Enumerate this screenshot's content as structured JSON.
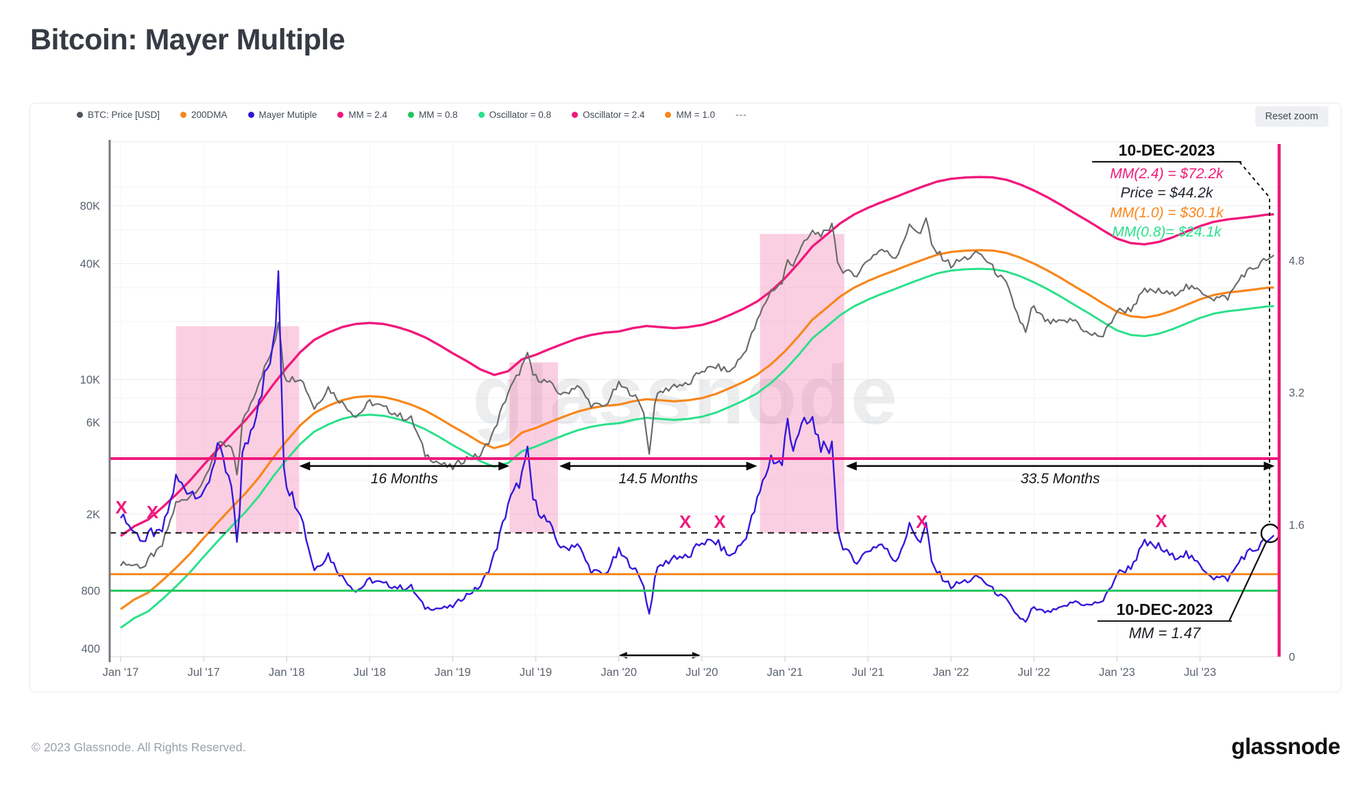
{
  "page": {
    "title": "Bitcoin: Mayer Multiple",
    "watermark": "glassnode",
    "footer": "© 2023 Glassnode. All Rights Reserved.",
    "brand": "glassnode"
  },
  "toolbar": {
    "reset_zoom": "Reset zoom"
  },
  "legend": [
    {
      "label": "BTC: Price [USD]",
      "color": "#4d545e"
    },
    {
      "label": "200DMA",
      "color": "#F8861B"
    },
    {
      "label": "Mayer Mutiple",
      "color": "#2E16D8"
    },
    {
      "label": "MM = 2.4",
      "color": "#F0197C"
    },
    {
      "label": "MM = 0.8",
      "color": "#1FC65C"
    },
    {
      "label": "Oscillator = 0.8",
      "color": "#2BE08A"
    },
    {
      "label": "Oscillator = 2.4",
      "color": "#F0197C"
    },
    {
      "label": "MM = 1.0",
      "color": "#F8861B"
    },
    {
      "label": "---",
      "color": "#9aa0a8",
      "dash": true
    }
  ],
  "annotations": {
    "top": {
      "date": "10-DEC-2023",
      "lines": [
        {
          "text": "MM(2.4) = $72.2k",
          "color": "#F0197C"
        },
        {
          "text": "Price = $44.2k",
          "color": "#1f242b"
        },
        {
          "text": "MM(1.0) = $30.1k",
          "color": "#F8861B"
        },
        {
          "text": "MM(0.8)= $24.1k",
          "color": "#2BE08A"
        }
      ]
    },
    "bottom": {
      "date": "10-DEC-2023",
      "value": "MM = 1.47"
    }
  },
  "chart_data": {
    "type": "line",
    "title": "Bitcoin: Mayer Multiple",
    "x_unit": "month",
    "x_start": "Jan 2017",
    "x_tick_labels": [
      "Jan '17",
      "Jul '17",
      "Jan '18",
      "Jul '18",
      "Jan '19",
      "Jul '19",
      "Jan '20",
      "Jul '20",
      "Jan '21",
      "Jul '21",
      "Jan '22",
      "Jul '22",
      "Jan '23",
      "Jul '23"
    ],
    "y_left": {
      "scale": "log",
      "unit": "USD",
      "ticks": [
        {
          "label": "80K",
          "value": 80000
        },
        {
          "label": "40K",
          "value": 40000
        },
        {
          "label": "10K",
          "value": 10000
        },
        {
          "label": "6K",
          "value": 6000
        },
        {
          "label": "2K",
          "value": 2000
        },
        {
          "label": "800",
          "value": 800
        },
        {
          "label": "400",
          "value": 400
        }
      ]
    },
    "y_right": {
      "scale": "linear",
      "unit": "Mayer Multiple",
      "ticks": [
        {
          "label": "4.8",
          "value": 4.8
        },
        {
          "label": "3.2",
          "value": 3.2
        },
        {
          "label": "1.6",
          "value": 1.6
        },
        {
          "label": "0",
          "value": 0
        }
      ]
    },
    "series": [
      {
        "name": "BTC: Price [USD]",
        "color": "#6b6b6b",
        "axis": "left",
        "monthly": [
          1050,
          1100,
          1080,
          1350,
          2300,
          2480,
          2870,
          4700,
          4350,
          6450,
          9900,
          14100,
          10200,
          10300,
          7000,
          9240,
          7500,
          6400,
          7750,
          7000,
          6600,
          6300,
          4020,
          3740,
          3460,
          3860,
          4100,
          5350,
          8560,
          11800,
          10100,
          9600,
          8300,
          9200,
          7550,
          7200,
          9350,
          8600,
          6440,
          8630,
          9450,
          9140,
          11350,
          11650,
          10780,
          13800,
          19700,
          29000,
          33100,
          45200,
          58800,
          57700,
          37300,
          35000,
          41500,
          47100,
          43800,
          61300,
          57000,
          46200,
          38500,
          43200,
          45500,
          37700,
          31800,
          19900,
          23300,
          20050,
          19400,
          20500,
          17150,
          16550,
          23100,
          23150,
          28500,
          29250,
          27200,
          30480,
          29230,
          25930,
          26970,
          34670,
          37700,
          44200
        ]
      },
      {
        "name": "200DMA",
        "color": "#F8861B",
        "axis": "left",
        "monthly": [
          640,
          720,
          780,
          900,
          1050,
          1240,
          1500,
          1800,
          2150,
          2550,
          3100,
          3900,
          4800,
          5800,
          6700,
          7300,
          7800,
          8100,
          8200,
          8100,
          7800,
          7400,
          6900,
          6300,
          5700,
          5200,
          4700,
          4400,
          4600,
          5300,
          5600,
          6000,
          6400,
          6800,
          7100,
          7300,
          7400,
          7700,
          7900,
          7800,
          7700,
          7800,
          8000,
          8400,
          9000,
          9700,
          10600,
          12000,
          14000,
          16800,
          20500,
          23500,
          27000,
          30000,
          32500,
          34800,
          37000,
          39500,
          42000,
          44500,
          46000,
          46700,
          47000,
          46800,
          45500,
          43000,
          40000,
          36800,
          33500,
          30300,
          27500,
          24800,
          22500,
          21300,
          21000,
          21600,
          22800,
          24400,
          26100,
          27500,
          28300,
          28800,
          29400,
          30070
        ]
      },
      {
        "name": "Mayer Mutiple",
        "color": "#2E16D8",
        "axis": "right",
        "derived": "price / 200dma"
      },
      {
        "name": "MM = 2.4",
        "color": "#F0197C",
        "axis": "left",
        "derived": "2.4 x 200dma"
      },
      {
        "name": "MM = 0.8",
        "color": "#2BE08A",
        "axis": "left",
        "derived": "0.8 x 200dma"
      }
    ],
    "price_spikes": [
      {
        "m": 0.15,
        "price": 1130
      },
      {
        "m": 2.3,
        "price": 1250
      },
      {
        "m": 8.5,
        "price": 3200
      },
      {
        "m": 11.45,
        "price": 19800
      },
      {
        "m": 29.5,
        "price": 13800
      },
      {
        "m": 38.15,
        "price": 4100
      },
      {
        "m": 48.25,
        "price": 41900
      },
      {
        "m": 51.4,
        "price": 64800
      },
      {
        "m": 58.25,
        "price": 69000
      },
      {
        "m": 65.5,
        "price": 17600
      }
    ],
    "hlines": [
      {
        "label": "Oscillator = 2.4",
        "value": 2.4,
        "color": "#F0197C",
        "width": 4
      },
      {
        "label": "MM = 1.0",
        "value": 1.0,
        "color": "#F8861B",
        "width": 3
      },
      {
        "label": "Oscillator = 0.8",
        "value": 0.8,
        "color": "#1FC65C",
        "width": 3
      }
    ],
    "dashed_threshold_mm": 1.5,
    "regions": [
      {
        "m0": 4.0,
        "m1": 12.9,
        "top_price": 18900,
        "bottom_mm": 1.5
      },
      {
        "m0": 28.1,
        "m1": 31.6,
        "top_price": 12300,
        "bottom_mm": 1.5
      },
      {
        "m0": 46.2,
        "m1": 52.3,
        "top_price": 57100,
        "bottom_mm": 1.5
      }
    ],
    "region_color": "rgba(243,96,160,0.30)",
    "period_arrows": [
      {
        "m0": 12.9,
        "m1": 28.1,
        "label": "16 Months"
      },
      {
        "m0": 31.7,
        "m1": 46.0,
        "label": "14.5 Months"
      },
      {
        "m0": 52.4,
        "m1": 83.4,
        "label": "33.5 Months"
      }
    ],
    "arrow_mm": 2.31,
    "bottom_arrow": {
      "m0": 36.0,
      "m1": 41.9
    },
    "x_marks": [
      {
        "m": 0.05,
        "mm": 1.8
      },
      {
        "m": 2.3,
        "mm": 1.74
      },
      {
        "m": 40.8,
        "mm": 1.63
      },
      {
        "m": 43.3,
        "mm": 1.63
      },
      {
        "m": 57.9,
        "mm": 1.63
      },
      {
        "m": 75.2,
        "mm": 1.64
      }
    ],
    "endpoint": {
      "date": "10-DEC-2023",
      "price": 44200,
      "mm": 1.47,
      "mm24": 72200,
      "mm10": 30100,
      "mm08": 24100
    }
  }
}
